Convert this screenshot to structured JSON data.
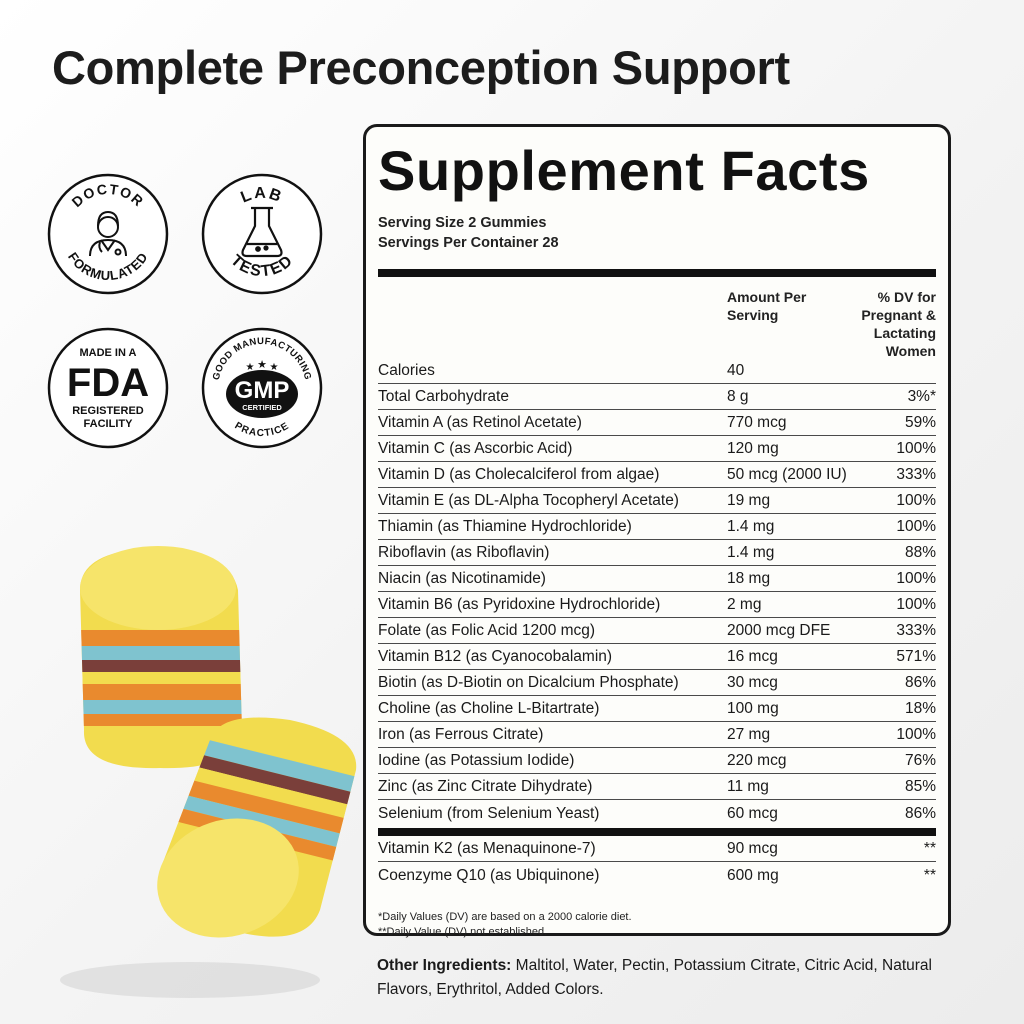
{
  "headline": "Complete Preconception Support",
  "badges": {
    "doctor": {
      "top": "DOCTOR",
      "bottom": "FORMULATED"
    },
    "lab": {
      "top": "LAB",
      "bottom": "TESTED"
    },
    "fda": {
      "line1": "MADE IN A",
      "big": "FDA",
      "line2": "REGISTERED",
      "line3": "FACILITY"
    },
    "gmp": {
      "arc_top": "GOOD MANUFACTURING",
      "big": "GMP",
      "sub": "CERTIFIED",
      "arc_bottom": "PRACTICE"
    }
  },
  "facts": {
    "title": "Supplement Facts",
    "serving_size": "Serving Size 2 Gummies",
    "servings_per_container": "Servings Per Container 28",
    "col_amount": "Amount Per Serving",
    "col_dv": "% DV for Pregnant & Lactating Women",
    "rows": [
      {
        "name": "Calories",
        "amount": "40",
        "dv": ""
      },
      {
        "name": "Total Carbohydrate",
        "amount": "8 g",
        "dv": "3%*"
      },
      {
        "name": "Vitamin A (as Retinol Acetate)",
        "amount": "770 mcg",
        "dv": "59%"
      },
      {
        "name": "Vitamin C (as Ascorbic Acid)",
        "amount": "120 mg",
        "dv": "100%"
      },
      {
        "name": "Vitamin D (as Cholecalciferol from algae)",
        "amount": "50 mcg (2000 IU)",
        "dv": "333%"
      },
      {
        "name": "Vitamin E (as DL-Alpha Tocopheryl Acetate)",
        "amount": "19 mg",
        "dv": "100%"
      },
      {
        "name": "Thiamin (as Thiamine Hydrochloride)",
        "amount": "1.4 mg",
        "dv": "100%"
      },
      {
        "name": "Riboflavin (as Riboflavin)",
        "amount": "1.4 mg",
        "dv": "88%"
      },
      {
        "name": "Niacin (as Nicotinamide)",
        "amount": "18 mg",
        "dv": "100%"
      },
      {
        "name": "Vitamin B6 (as Pyridoxine Hydrochloride)",
        "amount": "2 mg",
        "dv": "100%"
      },
      {
        "name": "Folate (as Folic Acid 1200 mcg)",
        "amount": "2000 mcg DFE",
        "dv": "333%"
      },
      {
        "name": "Vitamin B12 (as Cyanocobalamin)",
        "amount": "16 mcg",
        "dv": "571%"
      },
      {
        "name": "Biotin (as D-Biotin on Dicalcium Phosphate)",
        "amount": "30 mcg",
        "dv": "86%"
      },
      {
        "name": "Choline (as Choline L-Bitartrate)",
        "amount": "100 mg",
        "dv": "18%"
      },
      {
        "name": "Iron (as Ferrous Citrate)",
        "amount": "27 mg",
        "dv": "100%"
      },
      {
        "name": "Iodine (as Potassium Iodide)",
        "amount": "220 mcg",
        "dv": "76%"
      },
      {
        "name": "Zinc (as Zinc Citrate Dihydrate)",
        "amount": "11 mg",
        "dv": "85%"
      },
      {
        "name": "Selenium (from Selenium Yeast)",
        "amount": "60 mcg",
        "dv": "86%"
      }
    ],
    "extra_rows": [
      {
        "name": "Vitamin K2 (as Menaquinone-7)",
        "amount": "90 mcg",
        "dv": "**"
      },
      {
        "name": "Coenzyme Q10 (as Ubiquinone)",
        "amount": "600 mg",
        "dv": "**"
      }
    ],
    "footnote1": "*Daily Values (DV) are based on a 2000 calorie diet.",
    "footnote2": "**Daily Value (DV) not established."
  },
  "other_ingredients": {
    "label": "Other Ingredients:",
    "text": " Maltitol, Water, Pectin, Potassium Citrate, Citric Acid, Natural Flavors, Erythritol, Added Colors."
  },
  "colors": {
    "ink": "#111111",
    "panel_bg": "#fdfdfa",
    "gummy_yellow": "#f2dc4e",
    "gummy_orange": "#e98a2e",
    "gummy_blue": "#7fc3cf",
    "gummy_brown": "#7a3f3a"
  }
}
